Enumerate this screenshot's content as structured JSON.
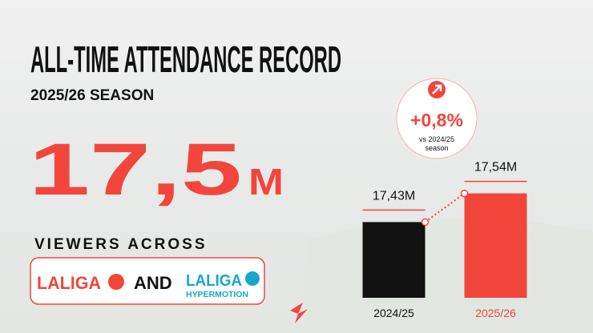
{
  "title": "ALL-TIME ATTENDANCE RECORD",
  "subtitle": "2025/26 SEASON",
  "headline": {
    "number": "17,5",
    "unit": "M"
  },
  "audience_label": "VIEWERS ACROSS",
  "competitions": {
    "first": "LALIGA",
    "connector": "AND",
    "second": "LALIGA",
    "second_sub": "HYPERMOTION"
  },
  "chart_data": {
    "type": "bar",
    "categories": [
      "2024/25",
      "2025/26"
    ],
    "values": [
      17.43,
      17.54
    ],
    "value_labels": [
      "17,43M",
      "17,54M"
    ],
    "colors": [
      "#111111",
      "#f2463c"
    ],
    "ylim": [
      17.14,
      17.6
    ],
    "change": {
      "label": "+0,8%",
      "note": [
        "vs 2024/25",
        "season"
      ]
    }
  }
}
